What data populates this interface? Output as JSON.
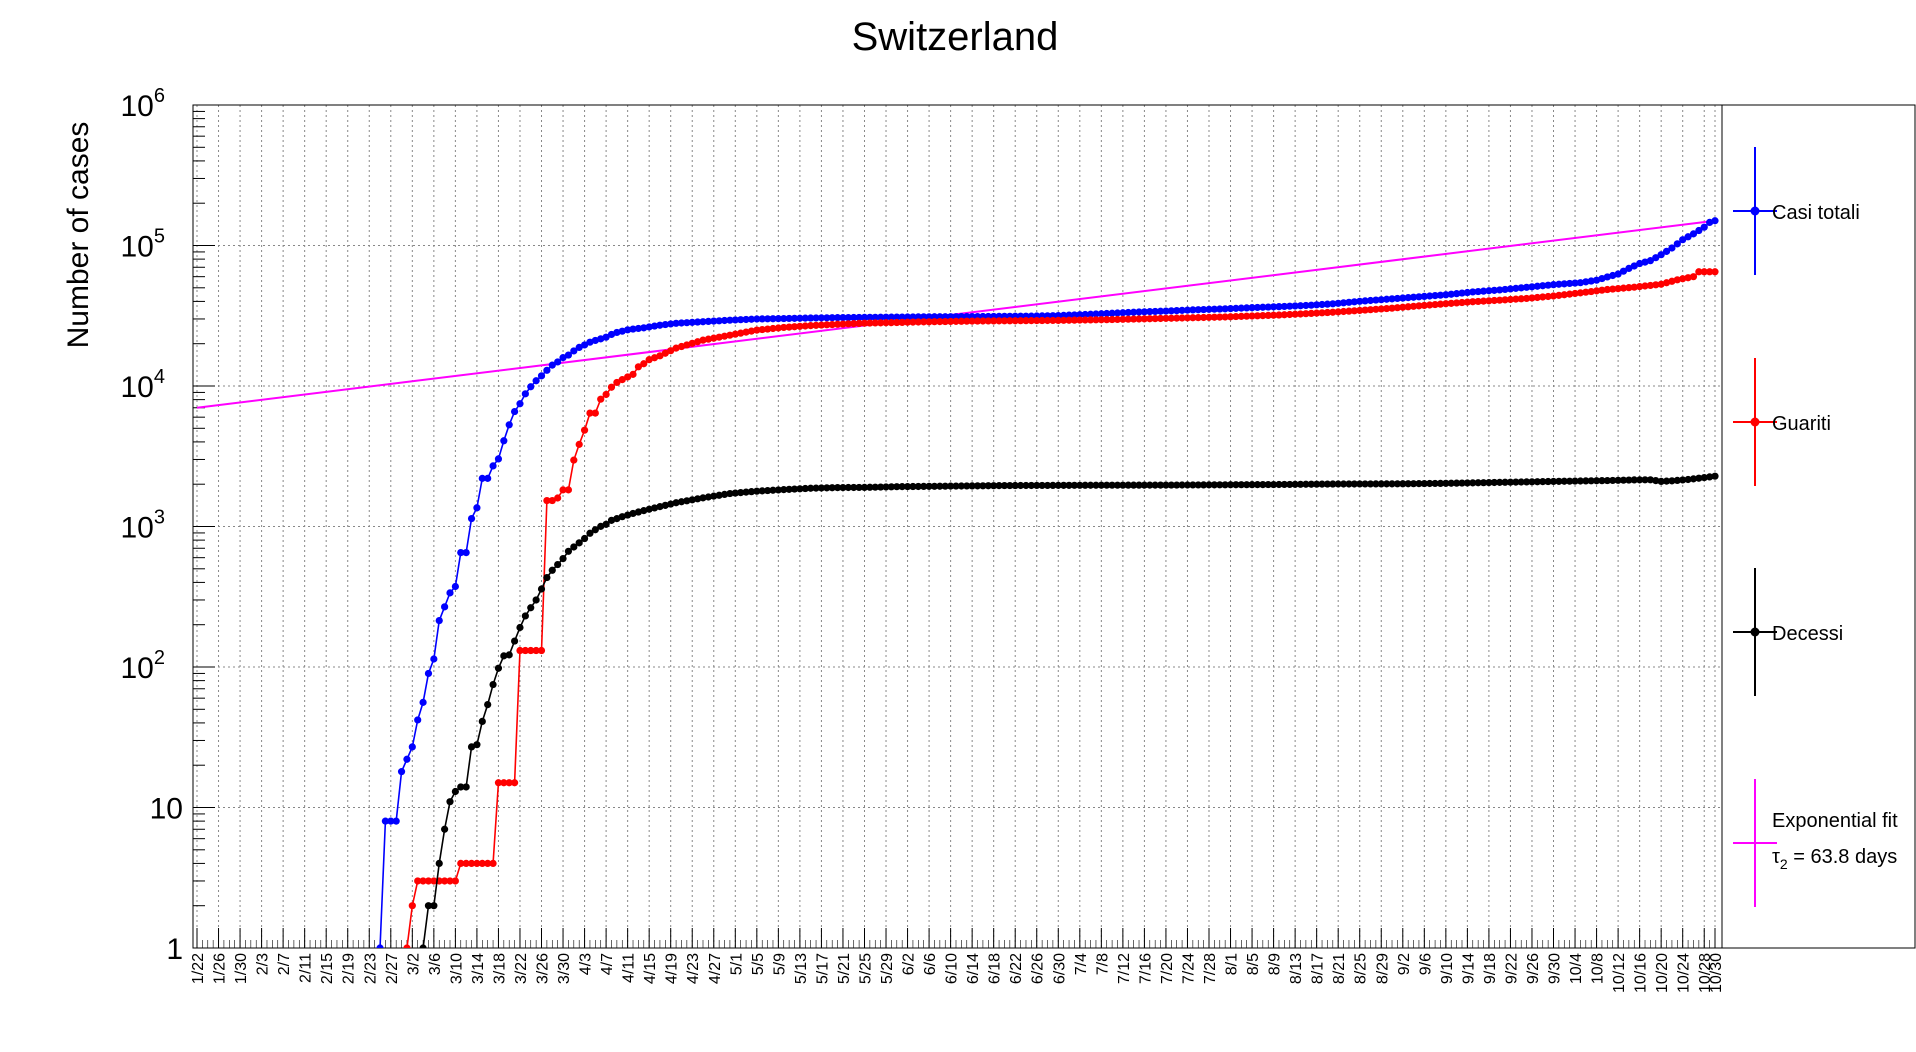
{
  "chart_data": {
    "type": "line",
    "title": "Switzerland",
    "xlabel": "",
    "ylabel": "Number of cases",
    "yscale": "log",
    "ylim": [
      1,
      1000000
    ],
    "ytick_labels": [
      "1",
      "10",
      "10",
      "10",
      "10",
      "10",
      "10"
    ],
    "ytick_exponents": [
      "",
      "",
      "2",
      "3",
      "4",
      "5",
      "6"
    ],
    "grid": true,
    "legend_position": "right",
    "x_tick_dates": [
      "1/22",
      "1/26",
      "1/30",
      "2/3",
      "2/7",
      "2/11",
      "2/15",
      "2/19",
      "2/23",
      "2/27",
      "3/2",
      "3/6",
      "3/10",
      "3/14",
      "3/18",
      "3/22",
      "3/26",
      "3/30",
      "4/3",
      "4/7",
      "4/11",
      "4/15",
      "4/19",
      "4/23",
      "4/27",
      "5/1",
      "5/5",
      "5/9",
      "5/13",
      "5/17",
      "5/21",
      "5/25",
      "5/29",
      "6/2",
      "6/6",
      "6/10",
      "6/14",
      "6/18",
      "6/22",
      "6/26",
      "6/30",
      "7/4",
      "7/8",
      "7/12",
      "7/16",
      "7/20",
      "7/24",
      "7/28",
      "8/1",
      "8/5",
      "8/9",
      "8/13",
      "8/17",
      "8/21",
      "8/25",
      "8/29",
      "9/2",
      "9/6",
      "9/10",
      "9/14",
      "9/18",
      "9/22",
      "9/26",
      "9/30",
      "10/4",
      "10/8",
      "10/12",
      "10/16",
      "10/20",
      "10/24",
      "10/28",
      "10/30"
    ],
    "series": [
      {
        "name": "Casi totali",
        "color": "#0000ff",
        "points": [
          [
            "2/25",
            1
          ],
          [
            "2/26",
            8
          ],
          [
            "2/28",
            8
          ],
          [
            "2/29",
            18
          ],
          [
            "3/2",
            27
          ],
          [
            "3/3",
            42
          ],
          [
            "3/4",
            56
          ],
          [
            "3/5",
            90
          ],
          [
            "3/6",
            114
          ],
          [
            "3/7",
            214
          ],
          [
            "3/8",
            268
          ],
          [
            "3/9",
            337
          ],
          [
            "3/10",
            374
          ],
          [
            "3/11",
            652
          ],
          [
            "3/12",
            652
          ],
          [
            "3/13",
            1139
          ],
          [
            "3/14",
            1359
          ],
          [
            "3/15",
            2200
          ],
          [
            "3/16",
            2200
          ],
          [
            "3/17",
            2700
          ],
          [
            "3/18",
            3028
          ],
          [
            "3/19",
            4075
          ],
          [
            "3/20",
            5294
          ],
          [
            "3/21",
            6575
          ],
          [
            "3/22",
            7474
          ],
          [
            "3/23",
            8795
          ],
          [
            "3/24",
            9877
          ],
          [
            "3/25",
            10897
          ],
          [
            "3/26",
            11811
          ],
          [
            "3/27",
            12928
          ],
          [
            "3/28",
            14076
          ],
          [
            "3/29",
            14829
          ],
          [
            "3/30",
            15922
          ],
          [
            "3/31",
            16605
          ],
          [
            "4/1",
            17768
          ],
          [
            "4/2",
            18827
          ],
          [
            "4/3",
            19606
          ],
          [
            "4/4",
            20505
          ],
          [
            "4/5",
            21100
          ],
          [
            "4/6",
            21657
          ],
          [
            "4/7",
            22253
          ],
          [
            "4/8",
            23280
          ],
          [
            "4/9",
            24051
          ],
          [
            "4/10",
            24551
          ],
          [
            "4/11",
            25107
          ],
          [
            "4/12",
            25415
          ],
          [
            "4/13",
            25688
          ],
          [
            "4/14",
            25936
          ],
          [
            "4/15",
            26336
          ],
          [
            "4/17",
            27078
          ],
          [
            "4/20",
            27944
          ],
          [
            "4/25",
            28677
          ],
          [
            "4/30",
            29407
          ],
          [
            "5/5",
            29981
          ],
          [
            "5/10",
            30207
          ],
          [
            "5/15",
            30463
          ],
          [
            "5/20",
            30658
          ],
          [
            "5/25",
            30776
          ],
          [
            "5/31",
            30936
          ],
          [
            "6/5",
            31063
          ],
          [
            "6/10",
            31131
          ],
          [
            "6/15",
            31200
          ],
          [
            "6/20",
            31310
          ],
          [
            "6/25",
            31428
          ],
          [
            "6/30",
            31714
          ],
          [
            "7/5",
            32268
          ],
          [
            "7/10",
            32946
          ],
          [
            "7/15",
            33634
          ],
          [
            "7/20",
            34154
          ],
          [
            "7/25",
            34802
          ],
          [
            "7/31",
            35412
          ],
          [
            "8/5",
            36108
          ],
          [
            "8/10",
            36708
          ],
          [
            "8/15",
            37403
          ],
          [
            "8/20",
            38449
          ],
          [
            "8/25",
            40060
          ],
          [
            "8/31",
            41722
          ],
          [
            "9/5",
            43127
          ],
          [
            "9/10",
            44592
          ],
          [
            "9/15",
            46704
          ],
          [
            "9/20",
            48265
          ],
          [
            "9/25",
            50378
          ],
          [
            "9/30",
            52646
          ],
          [
            "10/5",
            54384
          ],
          [
            "10/8",
            56632
          ],
          [
            "10/10",
            59727
          ],
          [
            "10/12",
            62662
          ],
          [
            "10/14",
            68704
          ],
          [
            "10/16",
            74422
          ],
          [
            "10/18",
            78000
          ],
          [
            "10/20",
            86000
          ],
          [
            "10/22",
            96000
          ],
          [
            "10/24",
            110000
          ],
          [
            "10/26",
            121000
          ],
          [
            "10/28",
            135000
          ],
          [
            "10/29",
            146000
          ],
          [
            "10/30",
            150000
          ]
        ]
      },
      {
        "name": "Guariti",
        "color": "#ff0000",
        "points": [
          [
            "3/1",
            1
          ],
          [
            "3/2",
            2
          ],
          [
            "3/3",
            3
          ],
          [
            "3/10",
            3
          ],
          [
            "3/11",
            4
          ],
          [
            "3/17",
            4
          ],
          [
            "3/18",
            15
          ],
          [
            "3/21",
            15
          ],
          [
            "3/22",
            131
          ],
          [
            "3/26",
            131
          ],
          [
            "3/27",
            1530
          ],
          [
            "3/28",
            1530
          ],
          [
            "3/29",
            1595
          ],
          [
            "3/30",
            1823
          ],
          [
            "3/31",
            1823
          ],
          [
            "4/1",
            2967
          ],
          [
            "4/2",
            3842
          ],
          [
            "4/3",
            4846
          ],
          [
            "4/4",
            6415
          ],
          [
            "4/5",
            6415
          ],
          [
            "4/6",
            8056
          ],
          [
            "4/7",
            8704
          ],
          [
            "4/8",
            9800
          ],
          [
            "4/9",
            10600
          ],
          [
            "4/10",
            11100
          ],
          [
            "4/11",
            11600
          ],
          [
            "4/12",
            12100
          ],
          [
            "4/13",
            13700
          ],
          [
            "4/14",
            14400
          ],
          [
            "4/15",
            15400
          ],
          [
            "4/17",
            16400
          ],
          [
            "4/20",
            18600
          ],
          [
            "4/25",
            21200
          ],
          [
            "4/30",
            23000
          ],
          [
            "5/5",
            25000
          ],
          [
            "5/10",
            26100
          ],
          [
            "5/15",
            26900
          ],
          [
            "5/20",
            27500
          ],
          [
            "5/25",
            28000
          ],
          [
            "5/31",
            28300
          ],
          [
            "6/5",
            28600
          ],
          [
            "6/10",
            28800
          ],
          [
            "6/15",
            29000
          ],
          [
            "6/20",
            29100
          ],
          [
            "6/25",
            29200
          ],
          [
            "6/30",
            29300
          ],
          [
            "7/5",
            29500
          ],
          [
            "7/10",
            29700
          ],
          [
            "7/15",
            30000
          ],
          [
            "7/20",
            30300
          ],
          [
            "7/25",
            30600
          ],
          [
            "7/31",
            31000
          ],
          [
            "8/5",
            31500
          ],
          [
            "8/10",
            32000
          ],
          [
            "8/15",
            32700
          ],
          [
            "8/20",
            33500
          ],
          [
            "8/25",
            34500
          ],
          [
            "8/31",
            35800
          ],
          [
            "9/5",
            37200
          ],
          [
            "9/10",
            38500
          ],
          [
            "9/15",
            39800
          ],
          [
            "9/20",
            40800
          ],
          [
            "9/25",
            42000
          ],
          [
            "9/30",
            43700
          ],
          [
            "10/5",
            46000
          ],
          [
            "10/10",
            48600
          ],
          [
            "10/15",
            50500
          ],
          [
            "10/20",
            53000
          ],
          [
            "10/23",
            57000
          ],
          [
            "10/26",
            60000
          ],
          [
            "10/27",
            65000
          ],
          [
            "10/30",
            65000
          ]
        ]
      },
      {
        "name": "Decessi",
        "color": "#000000",
        "points": [
          [
            "3/4",
            1
          ],
          [
            "3/5",
            2
          ],
          [
            "3/6",
            2
          ],
          [
            "3/7",
            4
          ],
          [
            "3/8",
            7
          ],
          [
            "3/9",
            11
          ],
          [
            "3/10",
            13
          ],
          [
            "3/11",
            14
          ],
          [
            "3/12",
            14
          ],
          [
            "3/13",
            27
          ],
          [
            "3/14",
            28
          ],
          [
            "3/15",
            41
          ],
          [
            "3/16",
            54
          ],
          [
            "3/17",
            75
          ],
          [
            "3/18",
            98
          ],
          [
            "3/19",
            120
          ],
          [
            "3/20",
            122
          ],
          [
            "3/21",
            153
          ],
          [
            "3/22",
            191
          ],
          [
            "3/23",
            231
          ],
          [
            "3/24",
            264
          ],
          [
            "3/25",
            300
          ],
          [
            "3/26",
            359
          ],
          [
            "3/27",
            433
          ],
          [
            "3/28",
            488
          ],
          [
            "3/29",
            536
          ],
          [
            "3/30",
            591
          ],
          [
            "3/31",
            666
          ],
          [
            "4/1",
            715
          ],
          [
            "4/2",
            765
          ],
          [
            "4/3",
            821
          ],
          [
            "4/4",
            895
          ],
          [
            "4/5",
            948
          ],
          [
            "4/6",
            1002
          ],
          [
            "4/7",
            1036
          ],
          [
            "4/8",
            1106
          ],
          [
            "4/9",
            1138
          ],
          [
            "4/10",
            1174
          ],
          [
            "4/12",
            1239
          ],
          [
            "4/15",
            1327
          ],
          [
            "4/20",
            1476
          ],
          [
            "4/25",
            1599
          ],
          [
            "4/30",
            1716
          ],
          [
            "5/5",
            1784
          ],
          [
            "5/10",
            1830
          ],
          [
            "5/15",
            1872
          ],
          [
            "5/20",
            1892
          ],
          [
            "5/25",
            1898
          ],
          [
            "5/31",
            1920
          ],
          [
            "6/10",
            1938
          ],
          [
            "6/20",
            1956
          ],
          [
            "6/30",
            1962
          ],
          [
            "7/10",
            1968
          ],
          [
            "7/20",
            1971
          ],
          [
            "7/31",
            1981
          ],
          [
            "8/10",
            1990
          ],
          [
            "8/20",
            2006
          ],
          [
            "8/31",
            2011
          ],
          [
            "9/10",
            2028
          ],
          [
            "9/20",
            2061
          ],
          [
            "9/30",
            2093
          ],
          [
            "10/10",
            2123
          ],
          [
            "10/15",
            2146
          ],
          [
            "10/18",
            2150
          ],
          [
            "10/20",
            2094
          ],
          [
            "10/22",
            2113
          ],
          [
            "10/25",
            2160
          ],
          [
            "10/28",
            2229
          ],
          [
            "10/30",
            2280
          ]
        ]
      }
    ],
    "fit": {
      "name": "Exponential fit",
      "label": "τ",
      "label_sub": "2",
      "label_rest": " = 63.8 days",
      "color": "#ff00ff",
      "points": [
        [
          "1/22",
          7000
        ],
        [
          "10/30",
          150000
        ]
      ]
    }
  }
}
